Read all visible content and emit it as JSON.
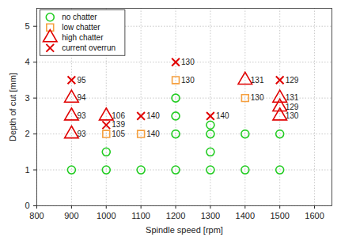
{
  "chart_data": {
    "type": "scatter",
    "xlabel": "Spindle speed [rpm]",
    "ylabel": "Depth of cut [mm]",
    "xlim": [
      800,
      1650
    ],
    "xticks": [
      800,
      900,
      1000,
      1100,
      1200,
      1300,
      1400,
      1500,
      1600
    ],
    "ylim": [
      0,
      5.5
    ],
    "yticks": [
      0,
      1,
      2,
      3,
      4,
      5
    ],
    "grid": true,
    "legend": "upper-left",
    "series": [
      {
        "name": "no chatter",
        "color": "#22cc22",
        "marker": "circle",
        "x": [
          900,
          1000,
          1000,
          1100,
          1200,
          1200,
          1200,
          1200,
          1300,
          1300,
          1300,
          1300,
          1400,
          1400,
          1500,
          1500
        ],
        "values": [
          1,
          1,
          1.5,
          1,
          1,
          2,
          2.5,
          3,
          1,
          1.5,
          2,
          2.25,
          1,
          2,
          1,
          2
        ]
      },
      {
        "name": "low chatter",
        "color": "#f5a040",
        "marker": "square",
        "x": [
          1000,
          1100,
          1200,
          1400
        ],
        "values": [
          2,
          2,
          3.5,
          3
        ],
        "annotations": [
          105,
          140,
          130,
          130
        ]
      },
      {
        "name": "high chatter",
        "color": "#e00000",
        "marker": "triangle",
        "x": [
          900,
          900,
          900,
          1000,
          1400,
          1500,
          1500,
          1500
        ],
        "values": [
          2,
          2.5,
          3,
          2.5,
          3.5,
          2.5,
          2.75,
          3
        ],
        "annotations": [
          93,
          93,
          94,
          106,
          131,
          130,
          129,
          131
        ]
      },
      {
        "name": "current overrun",
        "color": "#e00000",
        "marker": "x",
        "x": [
          900,
          1000,
          1100,
          1200,
          1300,
          1500
        ],
        "values": [
          3.5,
          2.25,
          2.5,
          4,
          2.5,
          3.5
        ],
        "annotations": [
          95,
          139,
          140,
          130,
          140,
          129
        ]
      }
    ]
  }
}
